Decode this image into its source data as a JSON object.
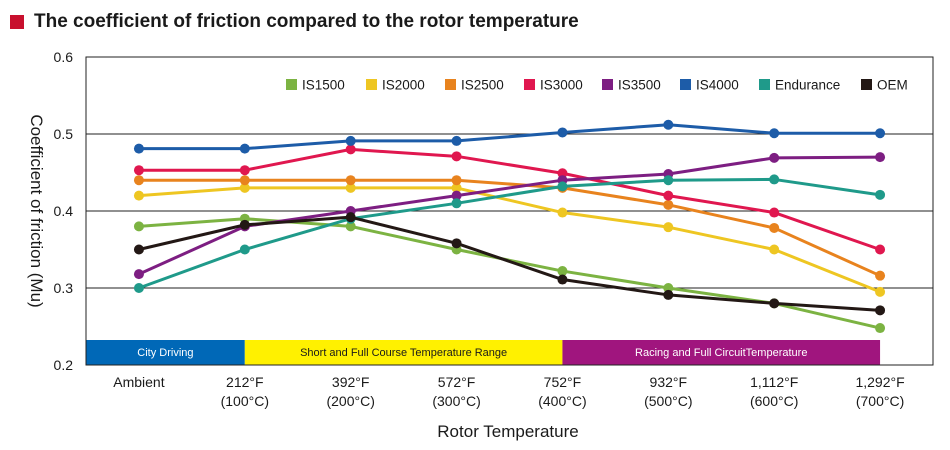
{
  "title": "The coefficient of friction compared to the rotor temperature",
  "colors": {
    "title_square": "#c8102e"
  },
  "chart_data": {
    "type": "line",
    "title": "The coefficient of friction compared to the rotor temperature",
    "xlabel": "Rotor Temperature",
    "ylabel": "Coefficient of friction (Mu)",
    "ylim": [
      0.2,
      0.6
    ],
    "yticks": [
      "0.2",
      "0.3",
      "0.4",
      "0.5",
      "0.6"
    ],
    "grid": "horizontal",
    "legend_position": "top-right",
    "categories": [
      [
        "Ambient",
        ""
      ],
      [
        "212°F",
        "(100°C)"
      ],
      [
        "392°F",
        "(200°C)"
      ],
      [
        "572°F",
        "(300°C)"
      ],
      [
        "752°F",
        "(400°C)"
      ],
      [
        "932°F",
        "(500°C)"
      ],
      [
        "1,112°F",
        "(600°C)"
      ],
      [
        "1,292°F",
        "(700°C)"
      ]
    ],
    "bands": [
      {
        "label": "City Driving",
        "from": 0,
        "to": 1.5,
        "color": "#0068b7"
      },
      {
        "label": "Short and Full Course Temperature Range",
        "from": 1.5,
        "to": 4.5,
        "color": "#fff100"
      },
      {
        "label": "Racing and Full CircuitTemperature",
        "from": 4.5,
        "to": 7.5,
        "color": "#a0157e"
      }
    ],
    "series": [
      {
        "name": "IS1500",
        "color": "#7cb342",
        "values": [
          0.38,
          0.39,
          0.38,
          0.35,
          0.322,
          0.3,
          0.28,
          0.248
        ]
      },
      {
        "name": "IS2000",
        "color": "#eec622",
        "values": [
          0.42,
          0.43,
          0.43,
          0.43,
          0.398,
          0.379,
          0.35,
          0.295
        ]
      },
      {
        "name": "IS2500",
        "color": "#e8831e",
        "values": [
          0.44,
          0.44,
          0.44,
          0.44,
          0.43,
          0.408,
          0.378,
          0.316
        ]
      },
      {
        "name": "IS3000",
        "color": "#e0174f",
        "values": [
          0.453,
          0.453,
          0.48,
          0.471,
          0.449,
          0.42,
          0.398,
          0.35
        ]
      },
      {
        "name": "IS3500",
        "color": "#7d1e82",
        "values": [
          0.318,
          0.38,
          0.4,
          0.42,
          0.44,
          0.448,
          0.469,
          0.47
        ]
      },
      {
        "name": "IS4000",
        "color": "#1d5ca8",
        "values": [
          0.481,
          0.481,
          0.491,
          0.491,
          0.502,
          0.512,
          0.501,
          0.501
        ]
      },
      {
        "name": "Endurance",
        "color": "#1f9a8a",
        "values": [
          0.3,
          0.35,
          0.39,
          0.41,
          0.432,
          0.44,
          0.441,
          0.421
        ]
      },
      {
        "name": "OEM",
        "color": "#231815",
        "values": [
          0.35,
          0.382,
          0.392,
          0.358,
          0.311,
          0.291,
          0.28,
          0.271
        ]
      }
    ]
  }
}
